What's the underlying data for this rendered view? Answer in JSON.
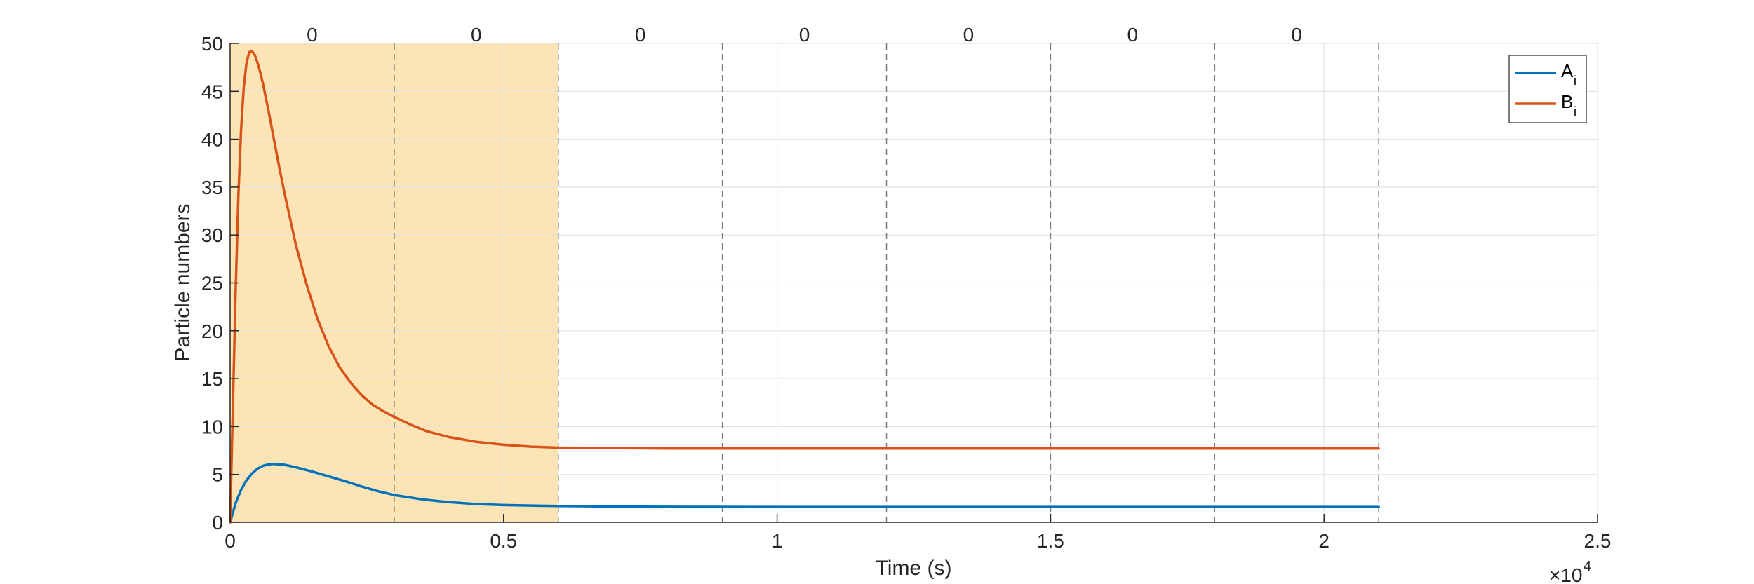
{
  "chart_data": {
    "type": "line",
    "xlabel": "Time (s)",
    "ylabel": "Particle numbers",
    "xlim": [
      0,
      25000
    ],
    "ylim": [
      0,
      50
    ],
    "x_exponent_label": "×10",
    "x_exponent_power": "4",
    "x_ticks": [
      0,
      5000,
      10000,
      15000,
      20000,
      25000
    ],
    "x_tick_labels": [
      "0",
      "0.5",
      "1",
      "1.5",
      "2",
      "2.5"
    ],
    "y_ticks": [
      0,
      5,
      10,
      15,
      20,
      25,
      30,
      35,
      40,
      45,
      50
    ],
    "y_tick_labels": [
      "0",
      "5",
      "10",
      "15",
      "20",
      "25",
      "30",
      "35",
      "40",
      "45",
      "50"
    ],
    "grid": true,
    "shaded_region": {
      "x_start": 0,
      "x_end": 6000,
      "color": "#fde4b5"
    },
    "vertical_lines": [
      3000,
      6000,
      9000,
      12000,
      15000,
      18000,
      21000
    ],
    "top_labels": [
      {
        "x": 1500,
        "text": "0"
      },
      {
        "x": 4500,
        "text": "0"
      },
      {
        "x": 7500,
        "text": "0"
      },
      {
        "x": 10500,
        "text": "0"
      },
      {
        "x": 13500,
        "text": "0"
      },
      {
        "x": 16500,
        "text": "0"
      },
      {
        "x": 19500,
        "text": "0"
      }
    ],
    "legend_position": "top-right",
    "series": [
      {
        "name": "A",
        "subscript": "i",
        "color": "#0072BD",
        "x": [
          0,
          100,
          200,
          300,
          400,
          500,
          600,
          700,
          800,
          1000,
          1200,
          1500,
          1800,
          2100,
          2400,
          2700,
          3000,
          3500,
          4000,
          4500,
          5000,
          5500,
          6000,
          7000,
          8000,
          10000,
          12000,
          15000,
          18000,
          21000
        ],
        "values": [
          0,
          2.0,
          3.4,
          4.4,
          5.1,
          5.6,
          5.9,
          6.05,
          6.1,
          6.0,
          5.75,
          5.3,
          4.8,
          4.3,
          3.75,
          3.25,
          2.85,
          2.4,
          2.1,
          1.9,
          1.8,
          1.75,
          1.7,
          1.65,
          1.62,
          1.6,
          1.6,
          1.6,
          1.6,
          1.6
        ]
      },
      {
        "name": "B",
        "subscript": "i",
        "color": "#D95319",
        "x": [
          0,
          50,
          100,
          150,
          200,
          250,
          300,
          350,
          400,
          450,
          500,
          550,
          600,
          700,
          800,
          900,
          1000,
          1200,
          1400,
          1600,
          1800,
          2000,
          2200,
          2400,
          2600,
          2800,
          3000,
          3300,
          3600,
          4000,
          4500,
          5000,
          5500,
          6000,
          7000,
          8000,
          10000,
          12000,
          15000,
          18000,
          21000
        ],
        "values": [
          0,
          12,
          24,
          34,
          41,
          45.5,
          48,
          49.1,
          49.2,
          48.8,
          48.0,
          47.0,
          45.8,
          43.0,
          40.0,
          37.0,
          34.2,
          29.0,
          24.8,
          21.2,
          18.4,
          16.2,
          14.6,
          13.3,
          12.3,
          11.6,
          11.0,
          10.2,
          9.5,
          8.9,
          8.4,
          8.1,
          7.9,
          7.8,
          7.75,
          7.7,
          7.7,
          7.7,
          7.7,
          7.7,
          7.7
        ]
      }
    ]
  }
}
